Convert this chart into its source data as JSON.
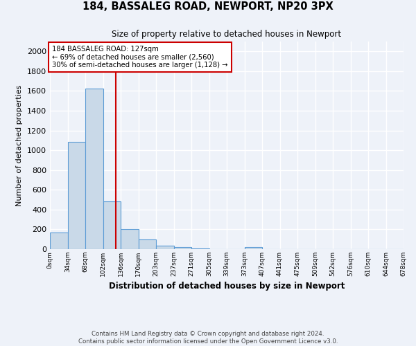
{
  "title": "184, BASSALEG ROAD, NEWPORT, NP20 3PX",
  "subtitle": "Size of property relative to detached houses in Newport",
  "xlabel": "Distribution of detached houses by size in Newport",
  "ylabel": "Number of detached properties",
  "bin_labels": [
    "0sqm",
    "34sqm",
    "68sqm",
    "102sqm",
    "136sqm",
    "170sqm",
    "203sqm",
    "237sqm",
    "271sqm",
    "305sqm",
    "339sqm",
    "373sqm",
    "407sqm",
    "441sqm",
    "475sqm",
    "509sqm",
    "542sqm",
    "576sqm",
    "610sqm",
    "644sqm",
    "678sqm"
  ],
  "bar_heights": [
    170,
    1085,
    1625,
    480,
    200,
    100,
    38,
    18,
    10,
    0,
    0,
    20,
    0,
    0,
    0,
    0,
    0,
    0,
    0,
    0
  ],
  "bar_color": "#c9d9e8",
  "bar_edge_color": "#5b9bd5",
  "vline_x": 127,
  "vline_color": "#cc0000",
  "annotation_text": "184 BASSALEG ROAD: 127sqm\n← 69% of detached houses are smaller (2,560)\n30% of semi-detached houses are larger (1,128) →",
  "annotation_box_color": "#ffffff",
  "annotation_box_edge_color": "#cc0000",
  "ylim": [
    0,
    2100
  ],
  "bin_width": 34,
  "background_color": "#eef2f9",
  "grid_color": "#ffffff",
  "footer_line1": "Contains HM Land Registry data © Crown copyright and database right 2024.",
  "footer_line2": "Contains public sector information licensed under the Open Government Licence v3.0."
}
